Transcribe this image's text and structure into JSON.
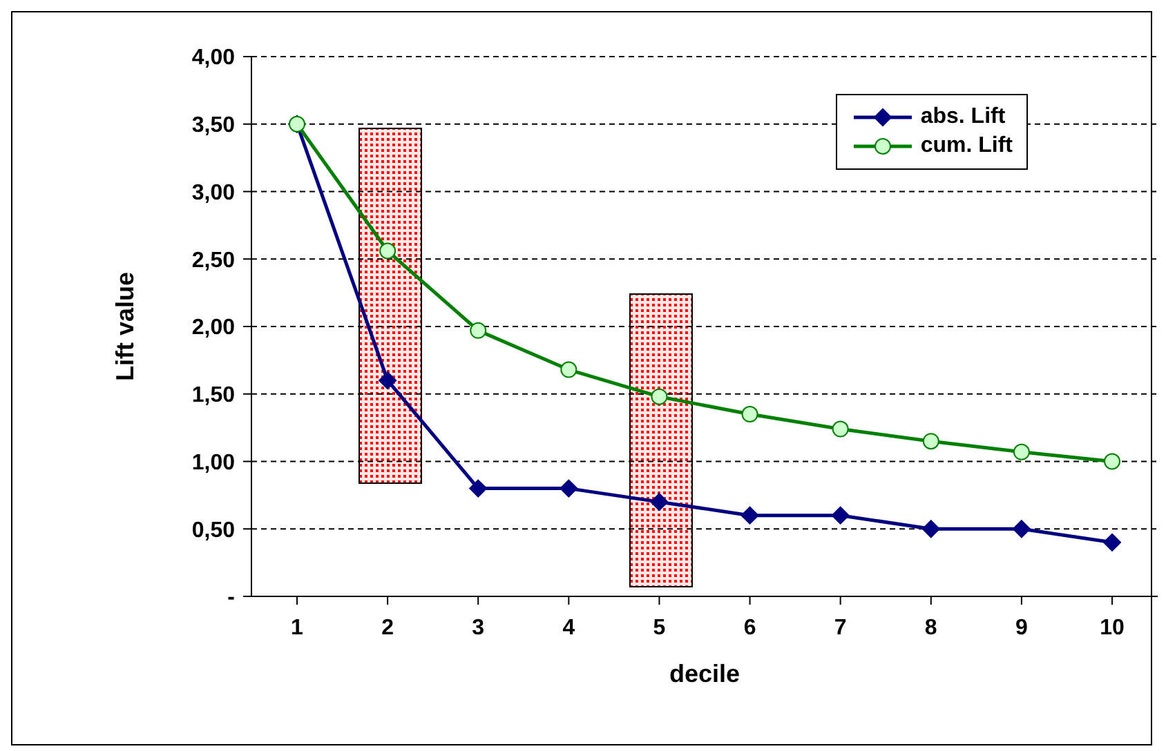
{
  "chart_data": {
    "type": "line",
    "xlabel": "decile",
    "ylabel": "Lift value",
    "categories": [
      "1",
      "2",
      "3",
      "4",
      "5",
      "6",
      "7",
      "8",
      "9",
      "10"
    ],
    "series": [
      {
        "name": "abs. Lift",
        "color": "#000080",
        "marker": "diamond",
        "values": [
          3.5,
          1.6,
          0.8,
          0.8,
          0.7,
          0.6,
          0.6,
          0.5,
          0.5,
          0.4
        ]
      },
      {
        "name": "cum. Lift",
        "color": "#008000",
        "marker": "circle",
        "values": [
          3.5,
          2.56,
          1.97,
          1.68,
          1.48,
          1.35,
          1.24,
          1.15,
          1.07,
          1.0
        ]
      }
    ],
    "ylim": [
      0,
      4
    ],
    "yticks": [
      {
        "value": 0,
        "label": "-"
      },
      {
        "value": 0.5,
        "label": "0,50"
      },
      {
        "value": 1,
        "label": "1,00"
      },
      {
        "value": 1.5,
        "label": "1,50"
      },
      {
        "value": 2,
        "label": "2,00"
      },
      {
        "value": 2.5,
        "label": "2,50"
      },
      {
        "value": 3,
        "label": "3,00"
      },
      {
        "value": 3.5,
        "label": "3,50"
      },
      {
        "value": 4,
        "label": "4,00"
      }
    ],
    "grid": "y",
    "legend": "top right",
    "line_style": "solid"
  }
}
